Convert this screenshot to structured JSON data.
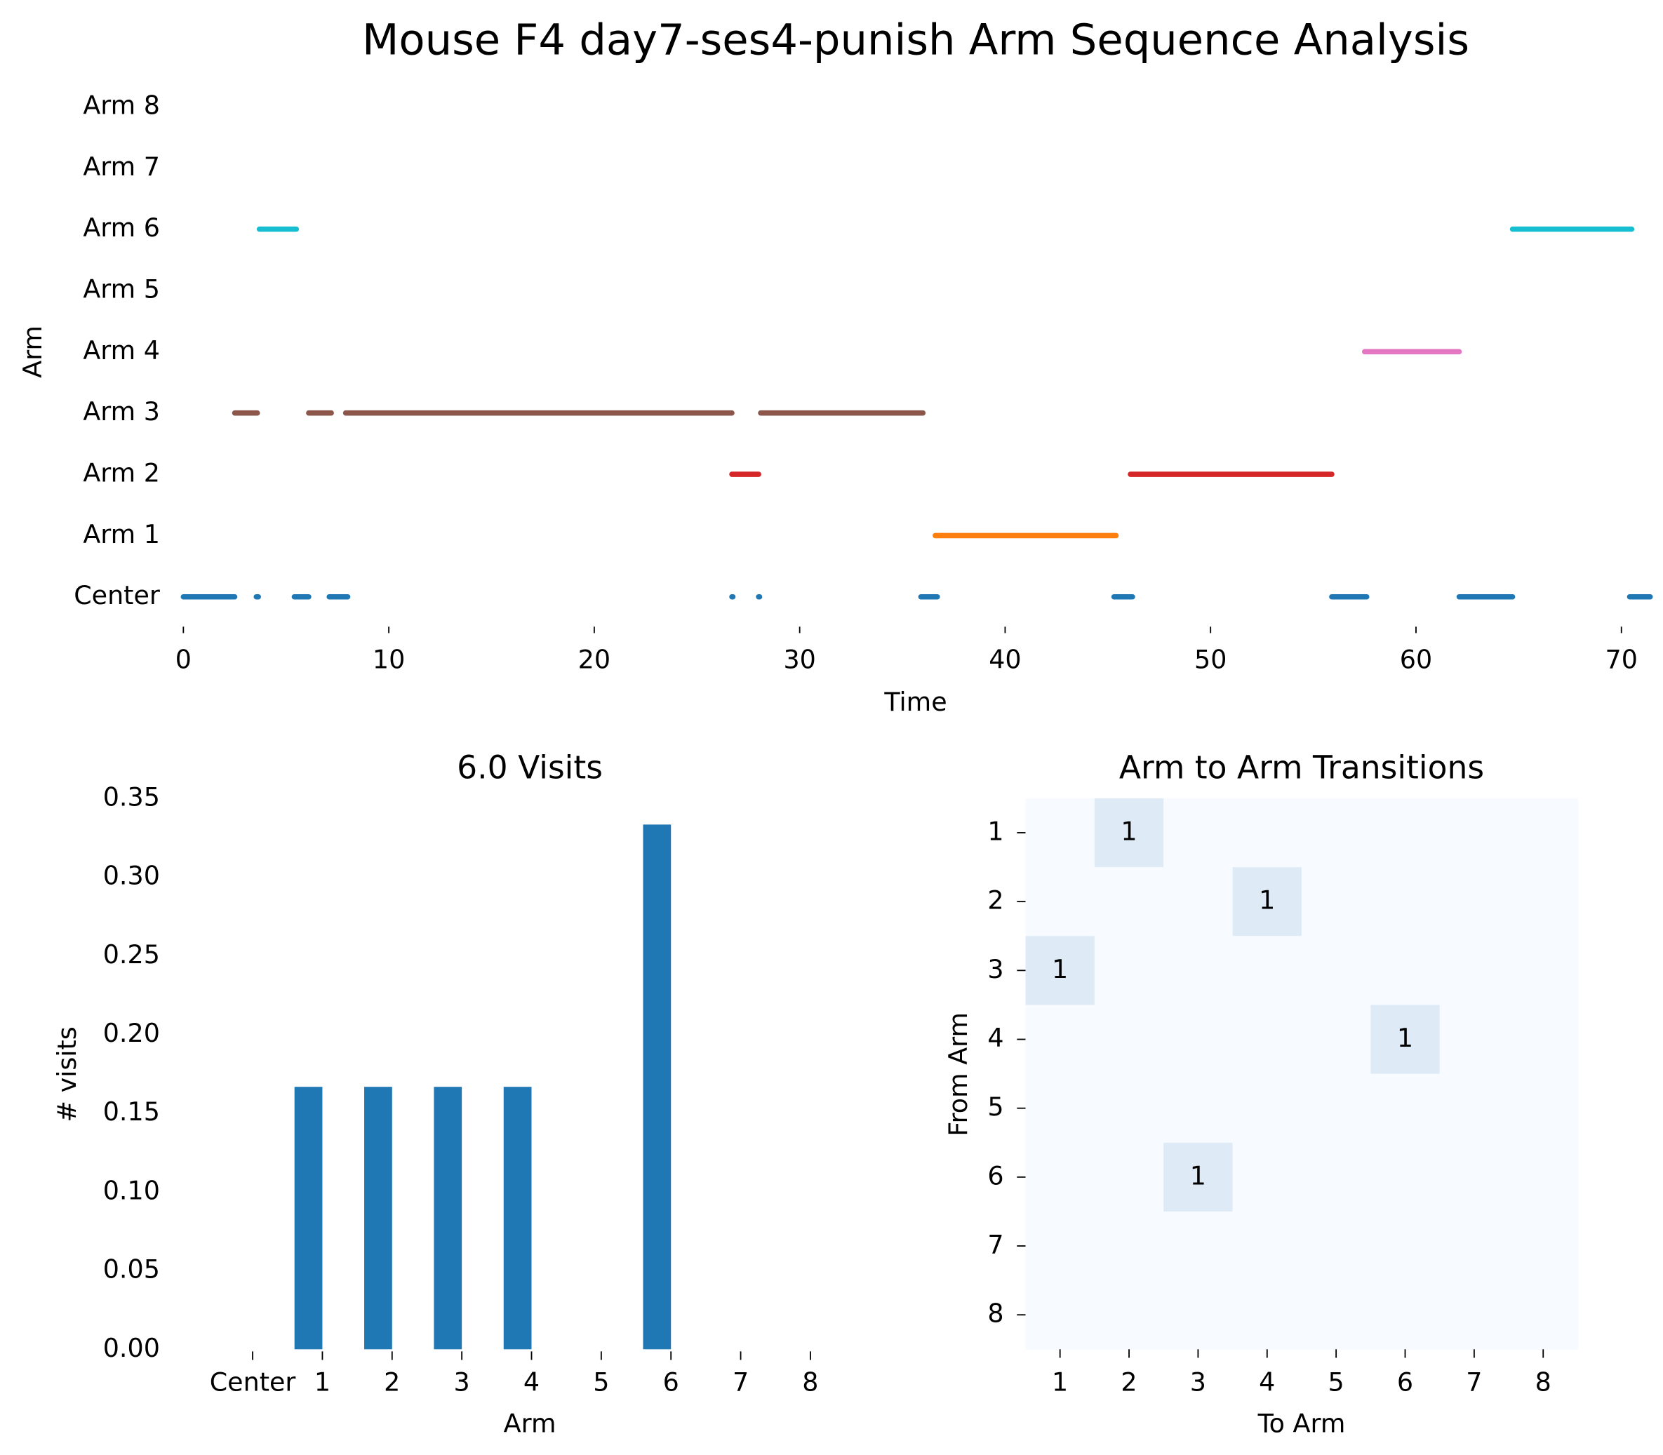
{
  "chart_data": [
    {
      "type": "timeline",
      "title": "Mouse F4 day7-ses4-punish Arm Sequence Analysis",
      "xlabel": "Time",
      "ylabel": "Arm",
      "xlim": [
        0,
        71.4
      ],
      "xticks": [
        0,
        10,
        20,
        30,
        40,
        50,
        60,
        70
      ],
      "lanes": [
        {
          "label": "Center",
          "color": "#1f77b4",
          "start": [
            0,
            3.55,
            5.4,
            7.1,
            26.7,
            28.0,
            35.9,
            45.3,
            55.9,
            62.1,
            70.4
          ],
          "end": [
            2.5,
            3.65,
            6.1,
            8.0,
            26.75,
            28.05,
            36.7,
            46.2,
            57.6,
            64.7,
            71.4
          ]
        },
        {
          "label": "Arm 1",
          "color": "#ff7f0e",
          "start": [
            36.6
          ],
          "end": [
            45.4
          ]
        },
        {
          "label": "Arm 2",
          "color": "#d62728",
          "start": [
            26.7,
            46.1
          ],
          "end": [
            28.0,
            55.9
          ]
        },
        {
          "label": "Arm 3",
          "color": "#8c564b",
          "start": [
            2.5,
            6.1,
            7.9,
            28.1
          ],
          "end": [
            3.6,
            7.2,
            26.7,
            36.0
          ]
        },
        {
          "label": "Arm 4",
          "color": "#e377c2",
          "start": [
            57.5
          ],
          "end": [
            62.1
          ]
        },
        {
          "label": "Arm 5",
          "start": [],
          "end": []
        },
        {
          "label": "Arm 6",
          "color": "#17becf",
          "start": [
            3.7,
            64.7
          ],
          "end": [
            5.5,
            70.5
          ]
        },
        {
          "label": "Arm 7",
          "start": [],
          "end": []
        },
        {
          "label": "Arm 8",
          "start": [],
          "end": []
        }
      ]
    },
    {
      "type": "bar",
      "title": "6.0 Visits",
      "xlabel": "Arm",
      "ylabel": "# visits",
      "categories": [
        "Center",
        "1",
        "2",
        "3",
        "4",
        "5",
        "6",
        "7",
        "8"
      ],
      "values": [
        0,
        0.1667,
        0.1667,
        0.1667,
        0.1667,
        0,
        0.3333,
        0,
        0
      ],
      "color": "#1f77b4",
      "ylim": [
        0,
        0.35
      ],
      "yticks": [
        {
          "value": 0,
          "label": "0.00"
        },
        {
          "value": 0.05,
          "label": "0.05"
        },
        {
          "value": 0.1,
          "label": "0.10"
        },
        {
          "value": 0.15,
          "label": "0.15"
        },
        {
          "value": 0.2,
          "label": "0.20"
        },
        {
          "value": 0.25,
          "label": "0.25"
        },
        {
          "value": 0.3,
          "label": "0.30"
        },
        {
          "value": 0.35,
          "label": "0.35"
        }
      ]
    },
    {
      "type": "heatmap",
      "title": "Arm to Arm Transitions",
      "xlabel": "To Arm",
      "ylabel": "From Arm",
      "x": [
        "1",
        "2",
        "3",
        "4",
        "5",
        "6",
        "7",
        "8"
      ],
      "y": [
        "1",
        "2",
        "3",
        "4",
        "5",
        "6",
        "7",
        "8"
      ],
      "low_color": "#f7fbff",
      "high_color": "#deebf7",
      "matrix": [
        [
          0,
          1,
          0,
          0,
          0,
          0,
          0,
          0
        ],
        [
          0,
          0,
          0,
          1,
          0,
          0,
          0,
          0
        ],
        [
          1,
          0,
          0,
          0,
          0,
          0,
          0,
          0
        ],
        [
          0,
          0,
          0,
          0,
          0,
          1,
          0,
          0
        ],
        [
          0,
          0,
          0,
          0,
          0,
          0,
          0,
          0
        ],
        [
          0,
          0,
          1,
          0,
          0,
          0,
          0,
          0
        ],
        [
          0,
          0,
          0,
          0,
          0,
          0,
          0,
          0
        ],
        [
          0,
          0,
          0,
          0,
          0,
          0,
          0,
          0
        ]
      ]
    }
  ]
}
